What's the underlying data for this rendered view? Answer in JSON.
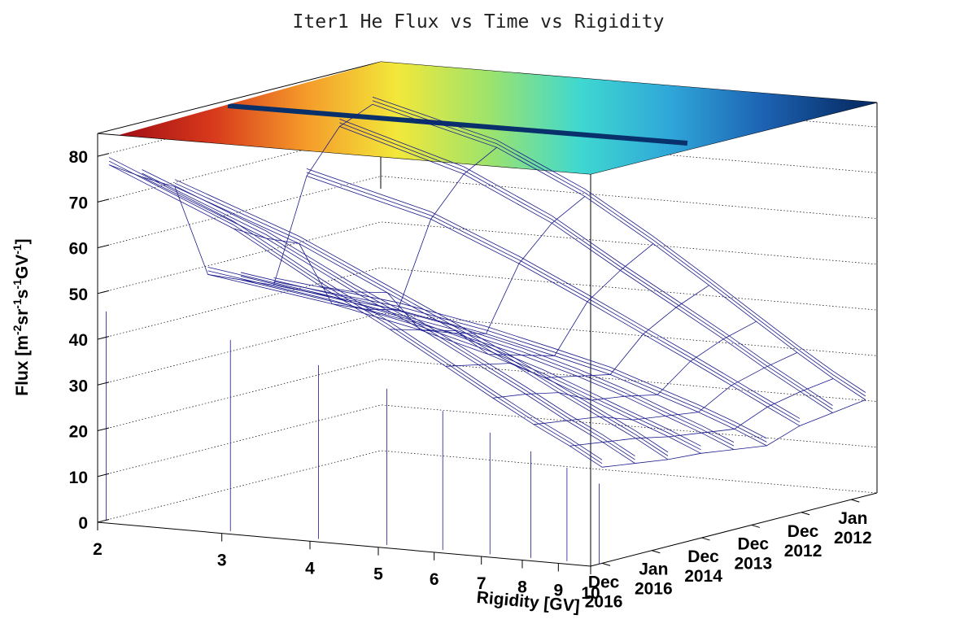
{
  "chart_data": {
    "type": "surface",
    "title": "Iter1 He Flux vs Time vs Rigidity",
    "zlabel": {
      "main": "Flux [m",
      "e1": "-2",
      "p1": "sr",
      "e2": "-1",
      "p2": "s",
      "e3": "-1",
      "p3": "GV",
      "e4": "-1",
      "close": "]"
    },
    "xlabel": "Rigidity [GV]",
    "z_ticks": [
      0,
      10,
      20,
      30,
      40,
      50,
      60,
      70,
      80
    ],
    "zlim": [
      0,
      85
    ],
    "x_scale": "log",
    "xlim": [
      2,
      10
    ],
    "x_ticks": [
      2,
      3,
      4,
      5,
      6,
      7,
      8,
      9,
      10
    ],
    "time_ticks": [
      {
        "line1": "Dec",
        "line2": "2016"
      },
      {
        "line1": "Jan",
        "line2": "2016"
      },
      {
        "line1": "Dec",
        "line2": "2014"
      },
      {
        "line1": "Dec",
        "line2": "2013"
      },
      {
        "line1": "Dec",
        "line2": "2012"
      },
      {
        "line1": "Jan",
        "line2": "2012"
      }
    ],
    "time_range": [
      "Jan 2012",
      "Dec 2016"
    ],
    "series": [
      {
        "values": [
          77.5,
          66,
          55,
          47,
          40,
          34,
          29,
          25,
          21
        ]
      },
      {
        "values": [
          73,
          62,
          52,
          45,
          38.5,
          33,
          28,
          24,
          20
        ]
      },
      {
        "values": [
          69,
          59,
          50,
          43,
          37,
          31.5,
          27,
          23,
          19
        ]
      },
      {
        "values": [
          48,
          44,
          40,
          36,
          32,
          28,
          24.5,
          21.5,
          18.5
        ]
      },
      {
        "values": [
          45,
          41,
          37.5,
          34,
          30.5,
          27,
          23.5,
          20.5,
          17.5
        ]
      },
      {
        "values": [
          42,
          39,
          35.5,
          32,
          29,
          25.5,
          22.5,
          19.5,
          16.5
        ]
      },
      {
        "values": [
          64,
          57,
          49,
          42,
          36,
          31,
          26.5,
          22.5,
          19
        ]
      },
      {
        "values": [
          73,
          65,
          56,
          47,
          40,
          34,
          28.5,
          24,
          20
        ]
      },
      {
        "values": [
          76,
          69,
          60,
          51,
          43,
          36,
          30,
          25,
          21
        ]
      }
    ],
    "colormap": [
      "#08306b",
      "#1d63b3",
      "#2fa6d9",
      "#3fd8d0",
      "#9ee36b",
      "#f2e83a",
      "#f59a2a",
      "#d73a1c",
      "#a50f15"
    ],
    "mesh_color": "#1a1a8c"
  }
}
